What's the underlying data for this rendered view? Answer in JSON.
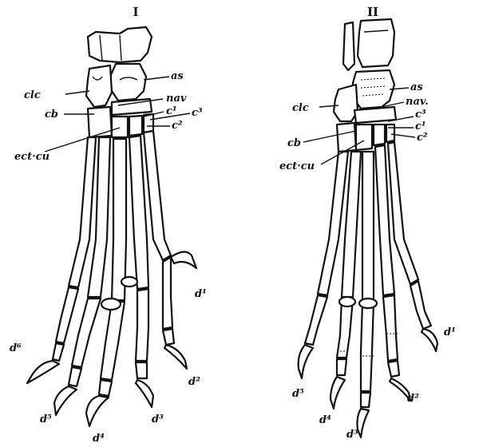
{
  "figure_1": {
    "numeral": "I",
    "labels": {
      "as": "as",
      "clc": "clc",
      "nav": "nav",
      "cb": "cb",
      "c1": "c¹",
      "c3": "c³",
      "c2": "c²",
      "ect_cu": "ect·cu",
      "d1": "d¹",
      "d2": "d²",
      "d3": "d³",
      "d4": "d⁴",
      "d5": "d⁵",
      "d6": "d⁶"
    }
  },
  "figure_2": {
    "numeral": "II",
    "labels": {
      "as": "as",
      "clc": "clc",
      "nav": "nav.",
      "c3": "c³",
      "c1": "c¹",
      "c2": "c²",
      "cb": "cb",
      "ect_cu": "ect·cu",
      "d1": "d¹",
      "d2": "d²",
      "d3": "d³",
      "d4": "d⁴",
      "d5": "d⁵"
    }
  }
}
